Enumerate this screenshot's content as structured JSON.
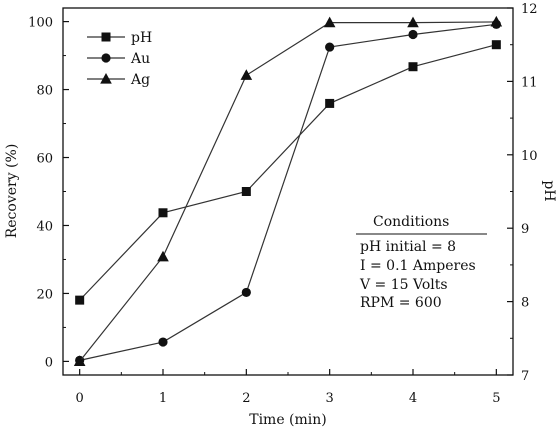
{
  "chart_data": {
    "type": "line",
    "xlabel": "Time (min)",
    "ylabel_left": "Recovery (%)",
    "ylabel_right": "pH",
    "x": [
      0,
      1,
      2,
      3,
      4,
      5
    ],
    "xlim": [
      -0.2,
      5.2
    ],
    "xticks": [
      "0",
      "1",
      "2",
      "3",
      "4",
      "5"
    ],
    "ylim_left": [
      -4,
      104
    ],
    "yticks_left": [
      "0",
      "20",
      "40",
      "60",
      "80",
      "100"
    ],
    "ylim_right": [
      7,
      12
    ],
    "yticks_right": [
      "7",
      "8",
      "9",
      "10",
      "11",
      "12"
    ],
    "series": [
      {
        "name": "pH",
        "axis": "right",
        "marker": "square",
        "values": [
          8.02,
          9.21,
          9.5,
          10.7,
          11.2,
          11.5
        ]
      },
      {
        "name": "Au",
        "axis": "left",
        "marker": "circle",
        "values": [
          0.3,
          5.7,
          20.3,
          92.5,
          96.2,
          99.2
        ]
      },
      {
        "name": "Ag",
        "axis": "left",
        "marker": "triangle",
        "values": [
          0,
          30.8,
          84.2,
          99.7,
          99.7,
          99.9
        ]
      }
    ],
    "legend_position": "top-left",
    "grid": false,
    "annotation": {
      "title": "Conditions",
      "lines": [
        "pH initial = 8",
        "I = 0.1 Amperes",
        "V = 15 Volts",
        "RPM = 600"
      ]
    }
  }
}
